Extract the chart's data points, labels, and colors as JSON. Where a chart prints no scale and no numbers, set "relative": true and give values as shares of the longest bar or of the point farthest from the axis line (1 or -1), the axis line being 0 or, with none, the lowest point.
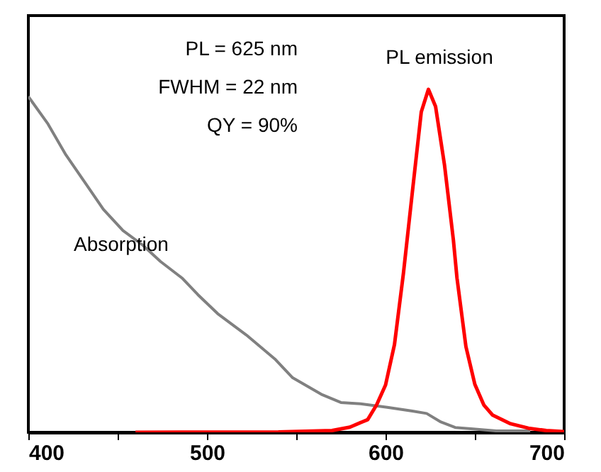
{
  "chart_data": {
    "type": "line",
    "relative": true,
    "xlim": [
      400,
      700
    ],
    "xticks": [
      400,
      {
        "value": 450,
        "label": null
      },
      500,
      {
        "value": 550,
        "label": null
      },
      600,
      {
        "value": 650,
        "label": null
      },
      700
    ],
    "annotations": [
      "PL = 625 nm",
      "FWHM = 22 nm",
      "QY = 90%"
    ],
    "series": [
      {
        "name": "Absorption",
        "color": "#808080",
        "x": [
          400,
          411,
          421,
          432,
          442,
          453,
          464,
          474,
          486,
          495,
          506,
          522,
          538,
          548,
          564,
          575,
          586,
          601,
          615,
          623,
          631,
          639,
          649,
          662,
          681
        ],
        "values": [
          0.979,
          0.899,
          0.809,
          0.726,
          0.65,
          0.588,
          0.546,
          0.498,
          0.45,
          0.401,
          0.346,
          0.284,
          0.214,
          0.159,
          0.111,
          0.087,
          0.083,
          0.073,
          0.062,
          0.055,
          0.03,
          0.014,
          0.01,
          0.004,
          0.004
        ]
      },
      {
        "name": "PL emission",
        "color": "#ff0000",
        "x": [
          460,
          540,
          570,
          580,
          590,
          595,
          600,
          605,
          610,
          615,
          620,
          624,
          628,
          633,
          638,
          640,
          645,
          650,
          655,
          660,
          670,
          680,
          690,
          700
        ],
        "values": [
          0,
          0.001,
          0.005,
          0.015,
          0.037,
          0.08,
          0.138,
          0.256,
          0.463,
          0.7,
          0.934,
          1,
          0.95,
          0.78,
          0.56,
          0.45,
          0.25,
          0.14,
          0.08,
          0.05,
          0.025,
          0.012,
          0.005,
          0.002
        ]
      }
    ]
  }
}
